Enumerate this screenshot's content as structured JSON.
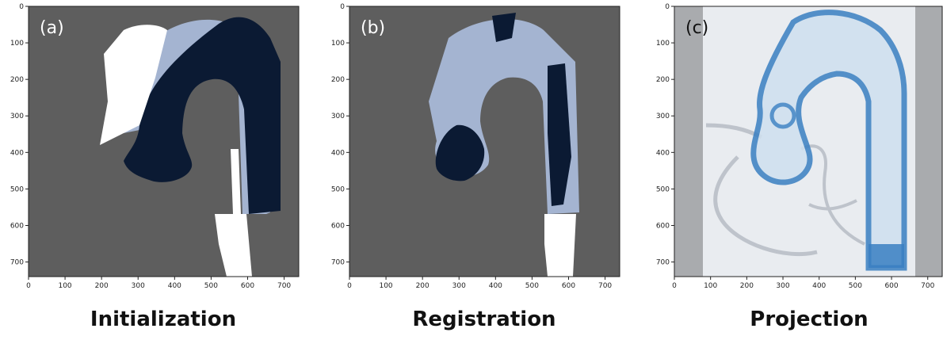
{
  "figure": {
    "panels": [
      {
        "label": "(a)",
        "caption": "Initialization"
      },
      {
        "label": "(b)",
        "caption": "Registration"
      },
      {
        "label": "(c)",
        "caption": "Projection"
      }
    ]
  },
  "chart_data": [
    {
      "type": "heatmap",
      "panel_label": "(a)",
      "caption": "Initialization",
      "x_ticks": [
        0,
        100,
        200,
        300,
        400,
        500,
        600,
        700
      ],
      "y_ticks": [
        0,
        100,
        200,
        300,
        400,
        500,
        600,
        700
      ],
      "xlim": [
        0,
        740
      ],
      "ylim": [
        740,
        0
      ],
      "grid": false,
      "colors": {
        "background": "#5e5e5e",
        "dark": "#0b1a33",
        "light": "#a4b4d1",
        "white": "#ffffff"
      }
    },
    {
      "type": "heatmap",
      "panel_label": "(b)",
      "caption": "Registration",
      "x_ticks": [
        0,
        100,
        200,
        300,
        400,
        500,
        600,
        700
      ],
      "y_ticks": [
        0,
        100,
        200,
        300,
        400,
        500,
        600,
        700
      ],
      "xlim": [
        0,
        740
      ],
      "ylim": [
        740,
        0
      ],
      "grid": false,
      "colors": {
        "background": "#5e5e5e",
        "dark": "#0b1a33",
        "light": "#a4b4d1",
        "white": "#ffffff"
      }
    },
    {
      "type": "heatmap",
      "panel_label": "(c)",
      "caption": "Projection",
      "x_ticks": [
        0,
        100,
        200,
        300,
        400,
        500,
        600,
        700
      ],
      "y_ticks": [
        0,
        100,
        200,
        300,
        400,
        500,
        600,
        700
      ],
      "xlim": [
        0,
        740
      ],
      "ylim": [
        740,
        0
      ],
      "grid": false,
      "colors": {
        "background": "#e9ecf0",
        "vessel": "#3a7fc2",
        "side": "#a9abae"
      }
    }
  ]
}
